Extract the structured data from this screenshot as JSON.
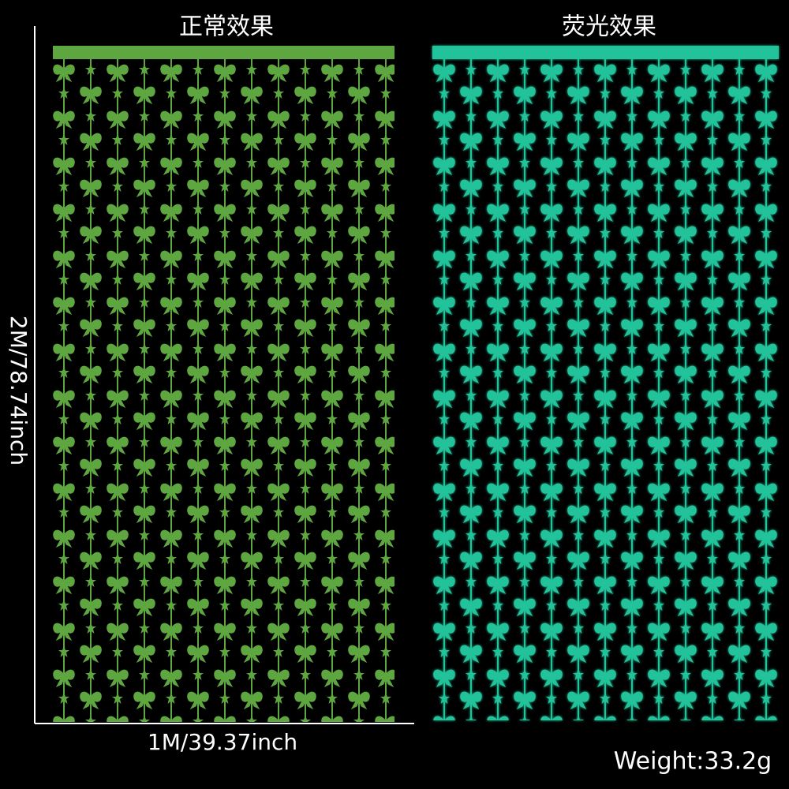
{
  "panels": [
    {
      "title": "正常效果"
    },
    {
      "title": "荧光效果"
    }
  ],
  "dimensions": {
    "height": "2M/78.74inch",
    "width": "1M/39.37inch"
  },
  "weight": "Weight:33.2g"
}
